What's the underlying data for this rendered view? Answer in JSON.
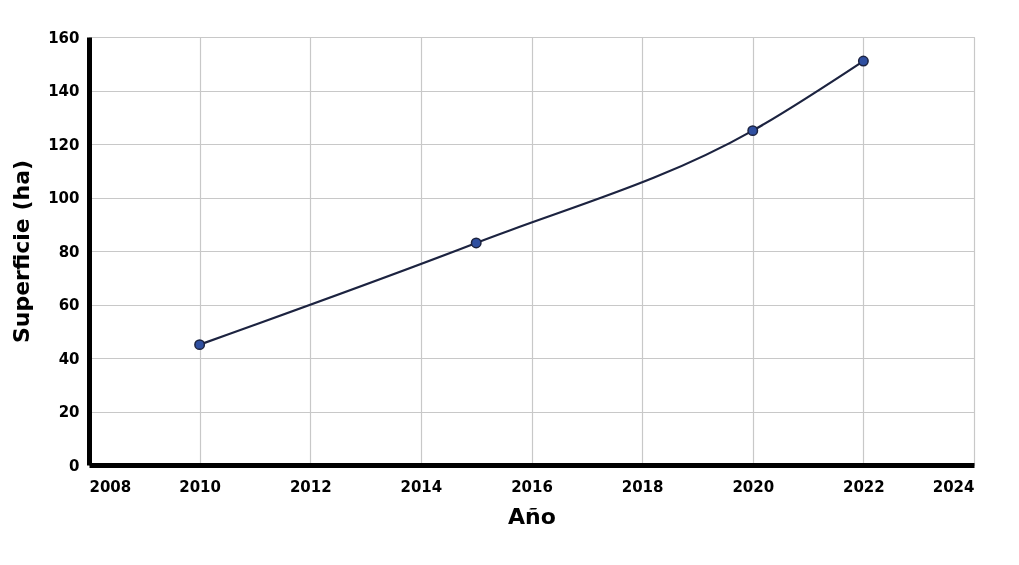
{
  "chart_data": {
    "type": "line",
    "xlabel": "Año",
    "ylabel": "Superficie (ha)",
    "x": [
      2010,
      2015,
      2020,
      2022
    ],
    "series": [
      {
        "color": "#1c2340",
        "values": [
          45,
          83,
          125,
          151
        ]
      }
    ],
    "xlim": [
      2008,
      2024
    ],
    "xticks": [
      2008,
      2010,
      2012,
      2014,
      2016,
      2018,
      2020,
      2022,
      2024
    ],
    "ylim": [
      0,
      160
    ],
    "yticks": [
      0,
      20,
      40,
      60,
      80,
      100,
      120,
      140,
      160
    ],
    "grid": true,
    "marker": "circle",
    "line_style": "solid"
  }
}
